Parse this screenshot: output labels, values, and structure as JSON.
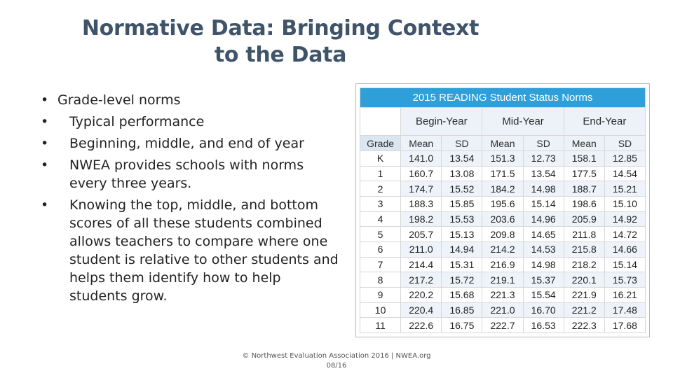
{
  "title": {
    "line1": "Normative Data: Bringing Context",
    "line2": "to the Data"
  },
  "bullets": {
    "level1": "Grade-level norms",
    "level2": [
      "Typical performance",
      "Beginning, middle, and end of year",
      "NWEA provides schools with norms every three years.",
      "Knowing the top, middle, and bottom scores of all these students combined allows teachers to compare where one student is relative to other students and helps them identify how to help students grow."
    ]
  },
  "table": {
    "title": "2015 READING Student Status Norms",
    "periods": [
      "Begin-Year",
      "Mid-Year",
      "End-Year"
    ],
    "columns": [
      "Grade",
      "Mean",
      "SD",
      "Mean",
      "SD",
      "Mean",
      "SD"
    ],
    "rows": [
      [
        "K",
        "141.0",
        "13.54",
        "151.3",
        "12.73",
        "158.1",
        "12.85"
      ],
      [
        "1",
        "160.7",
        "13.08",
        "171.5",
        "13.54",
        "177.5",
        "14.54"
      ],
      [
        "2",
        "174.7",
        "15.52",
        "184.2",
        "14.98",
        "188.7",
        "15.21"
      ],
      [
        "3",
        "188.3",
        "15.85",
        "195.6",
        "15.14",
        "198.6",
        "15.10"
      ],
      [
        "4",
        "198.2",
        "15.53",
        "203.6",
        "14.96",
        "205.9",
        "14.92"
      ],
      [
        "5",
        "205.7",
        "15.13",
        "209.8",
        "14.65",
        "211.8",
        "14.72"
      ],
      [
        "6",
        "211.0",
        "14.94",
        "214.2",
        "14.53",
        "215.8",
        "14.66"
      ],
      [
        "7",
        "214.4",
        "15.31",
        "216.9",
        "14.98",
        "218.2",
        "15.14"
      ],
      [
        "8",
        "217.2",
        "15.72",
        "219.1",
        "15.37",
        "220.1",
        "15.73"
      ],
      [
        "9",
        "220.2",
        "15.68",
        "221.3",
        "15.54",
        "221.9",
        "16.21"
      ],
      [
        "10",
        "220.4",
        "16.85",
        "221.0",
        "16.70",
        "221.2",
        "17.48"
      ],
      [
        "11",
        "222.6",
        "16.75",
        "222.7",
        "16.53",
        "222.3",
        "17.68"
      ]
    ]
  },
  "footer": {
    "line1": "© Northwest Evaluation Association 2016  |  NWEA.org",
    "line2": "08/16"
  },
  "colors": {
    "title": "#3f5468",
    "table_header": "#2e9fd9",
    "alt_row": "#eef3f9"
  }
}
